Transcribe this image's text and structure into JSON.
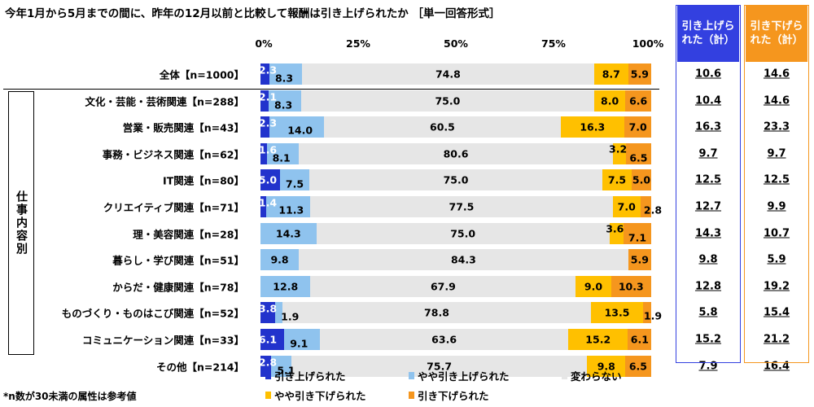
{
  "title": "今年1月から5月までの間に、昨年の12月以前と比較して報酬は引き上げられたか ［単一回答形式］",
  "group_label": "仕事内容別",
  "footnote": "*n数が30未満の属性は参考値",
  "summary_headers": {
    "up": "引き上げられた（計）",
    "down": "引き下げられた（計）"
  },
  "colors": {
    "raised": "#2233cc",
    "slightly_raised": "#8fc3ee",
    "unchanged": "#e6e6e6",
    "slightly_lowered": "#ffc000",
    "lowered": "#f5961e",
    "up_accent": "#3340e0",
    "down_accent": "#f5961e"
  },
  "chart_data": {
    "type": "bar",
    "orientation": "horizontal",
    "stacked": true,
    "xlim": [
      0,
      100
    ],
    "x_ticks": [
      "0%",
      "25%",
      "50%",
      "75%",
      "100%"
    ],
    "categories": [
      "全体【n=1000】",
      "文化・芸能・芸術関連【n=288】",
      "営業・販売関連【n=43】",
      "事務・ビジネス関連【n=62】",
      "IT関連【n=80】",
      "クリエイティブ関連【n=71】",
      "理・美容関連【n=28】",
      "暮らし・学び関連【n=51】",
      "からだ・健康関連【n=78】",
      "ものづくり・ものはこび関連【n=52】",
      "コミュニケーション関連【n=33】",
      "その他【n=214】"
    ],
    "series": [
      {
        "name": "引き上げられた",
        "values": [
          2.3,
          2.1,
          2.3,
          1.6,
          5.0,
          1.4,
          0,
          0,
          0,
          3.8,
          6.1,
          2.8
        ]
      },
      {
        "name": "やや引き上げられた",
        "values": [
          8.3,
          8.3,
          14.0,
          8.1,
          7.5,
          11.3,
          14.3,
          9.8,
          12.8,
          1.9,
          9.1,
          5.1
        ]
      },
      {
        "name": "変わらない",
        "values": [
          74.8,
          75.0,
          60.5,
          80.6,
          75.0,
          77.5,
          75.0,
          84.3,
          67.9,
          78.8,
          63.6,
          75.7
        ]
      },
      {
        "name": "やや引き下げられた",
        "values": [
          8.7,
          8.0,
          16.3,
          3.2,
          7.5,
          7.0,
          3.6,
          0,
          9.0,
          13.5,
          15.2,
          9.8
        ]
      },
      {
        "name": "引き下げられた",
        "values": [
          5.9,
          6.6,
          7.0,
          6.5,
          5.0,
          2.8,
          7.1,
          5.9,
          10.3,
          1.9,
          6.1,
          6.5
        ]
      }
    ],
    "summary_up": [
      "10.6",
      "10.4",
      "16.3",
      "9.7",
      "12.5",
      "12.7",
      "14.3",
      "9.8",
      "12.8",
      "5.8",
      "15.2",
      "7.9"
    ],
    "summary_down": [
      "14.6",
      "14.6",
      "23.3",
      "9.7",
      "12.5",
      "9.9",
      "10.7",
      "5.9",
      "19.2",
      "15.4",
      "21.2",
      "16.4"
    ]
  }
}
